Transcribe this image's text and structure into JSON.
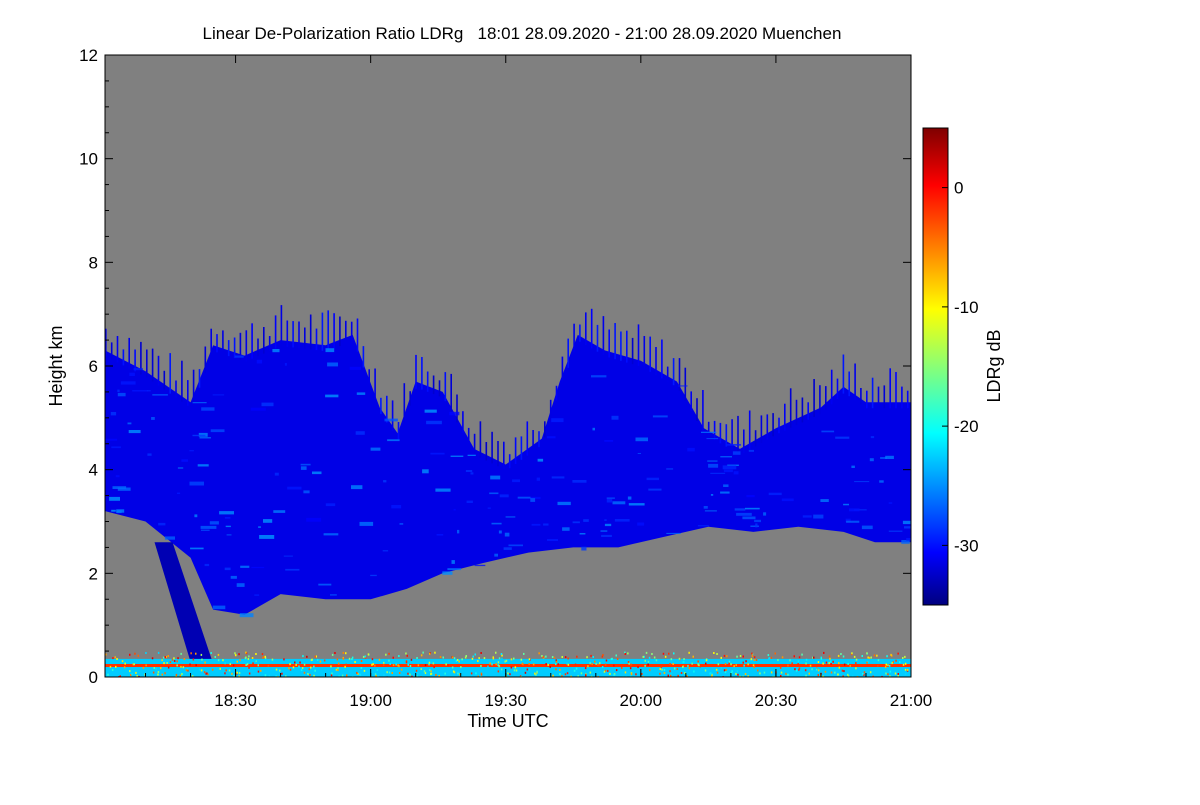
{
  "chart_data": {
    "type": "heatmap",
    "title": "Linear De-Polarization Ratio LDRg   18:01 28.09.2020 - 21:00 28.09.2020 Muenchen",
    "xlabel": "Time UTC",
    "ylabel": "Height km",
    "x_range_minutes_utc": [
      1081,
      1260
    ],
    "x_ticks": [
      {
        "minute": 1110,
        "label": "18:30"
      },
      {
        "minute": 1140,
        "label": "19:00"
      },
      {
        "minute": 1170,
        "label": "19:30"
      },
      {
        "minute": 1200,
        "label": "20:00"
      },
      {
        "minute": 1230,
        "label": "20:30"
      },
      {
        "minute": 1260,
        "label": "21:00"
      }
    ],
    "ylim": [
      0,
      12
    ],
    "y_ticks": [
      0,
      2,
      4,
      6,
      8,
      10,
      12
    ],
    "colorbar": {
      "label": "LDRg dB",
      "range": [
        -35,
        5
      ],
      "ticks": [
        -30,
        -20,
        -10,
        0
      ],
      "colormap": "jet"
    },
    "background_color": "#808080",
    "cloud_layer": {
      "description_values": "boundaries in km vs time (minutes UTC)",
      "top_km": [
        [
          1081,
          6.3
        ],
        [
          1090,
          5.9
        ],
        [
          1100,
          5.3
        ],
        [
          1105,
          6.4
        ],
        [
          1112,
          6.2
        ],
        [
          1120,
          6.5
        ],
        [
          1130,
          6.4
        ],
        [
          1136,
          6.6
        ],
        [
          1142,
          5.2
        ],
        [
          1146,
          4.7
        ],
        [
          1150,
          5.7
        ],
        [
          1156,
          5.5
        ],
        [
          1163,
          4.4
        ],
        [
          1170,
          4.1
        ],
        [
          1178,
          4.6
        ],
        [
          1182,
          5.7
        ],
        [
          1186,
          6.6
        ],
        [
          1192,
          6.3
        ],
        [
          1200,
          6.1
        ],
        [
          1208,
          5.7
        ],
        [
          1214,
          4.8
        ],
        [
          1222,
          4.4
        ],
        [
          1230,
          4.8
        ],
        [
          1240,
          5.2
        ],
        [
          1245,
          5.6
        ],
        [
          1250,
          5.3
        ],
        [
          1260,
          5.3
        ]
      ],
      "base_km": [
        [
          1081,
          3.2
        ],
        [
          1090,
          3.0
        ],
        [
          1100,
          2.3
        ],
        [
          1105,
          1.3
        ],
        [
          1112,
          1.2
        ],
        [
          1120,
          1.6
        ],
        [
          1130,
          1.5
        ],
        [
          1140,
          1.5
        ],
        [
          1148,
          1.7
        ],
        [
          1156,
          2.0
        ],
        [
          1165,
          2.2
        ],
        [
          1175,
          2.4
        ],
        [
          1185,
          2.5
        ],
        [
          1195,
          2.5
        ],
        [
          1205,
          2.7
        ],
        [
          1215,
          2.9
        ],
        [
          1225,
          2.8
        ],
        [
          1235,
          2.9
        ],
        [
          1245,
          2.8
        ],
        [
          1252,
          2.6
        ],
        [
          1260,
          2.6
        ]
      ],
      "typical_ldr_db": -31
    },
    "near_surface": {
      "band_km": [
        0.0,
        0.35
      ],
      "ldr_db_range": [
        -22,
        2
      ]
    },
    "precip_streak_minutes": [
      1092,
      1106
    ],
    "legend": "none"
  }
}
